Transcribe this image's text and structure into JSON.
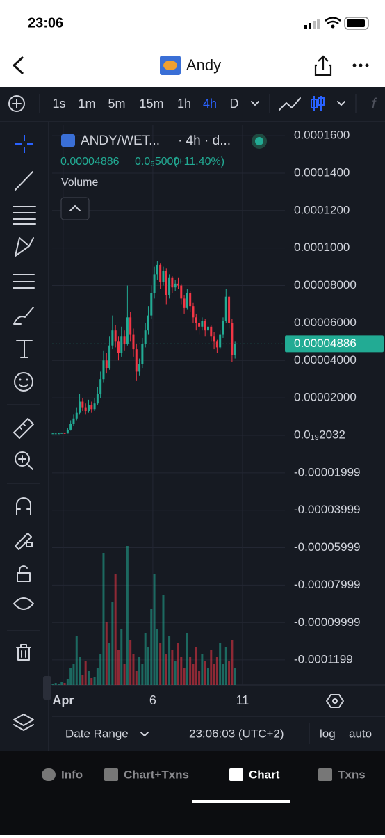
{
  "status_bar": {
    "time": "23:06"
  },
  "header": {
    "title": "Andy"
  },
  "timeframes": {
    "items": [
      "1s",
      "1m",
      "5m",
      "15m",
      "1h",
      "4h",
      "D"
    ],
    "active": "4h"
  },
  "chart_data": {
    "type": "candlestick",
    "title": "ANDY/WET...",
    "subtitle": "· 4h · d...",
    "volume_label": "Volume",
    "up_color": "#22ab94",
    "down_color": "#f23645",
    "last_price": 4.886e-05,
    "price_change": {
      "value": 5e-06,
      "label": "0.0₅5000"
    },
    "price_change_pct": {
      "value": 11.4,
      "label": "(+11.40%)"
    },
    "xlim": [
      -0.2,
      77.7
    ],
    "xticks": [
      {
        "value": 3.5,
        "label": "Apr"
      },
      {
        "value": 33.5,
        "label": "6"
      },
      {
        "value": 63.5,
        "label": "11"
      }
    ],
    "ylim": [
      -0.0001333,
      0.0001656
    ],
    "yticks": [
      {
        "value": 0.00016,
        "label": "0.0001600"
      },
      {
        "value": 0.00014,
        "label": "0.0001400"
      },
      {
        "value": 0.00012,
        "label": "0.0001200"
      },
      {
        "value": 0.0001,
        "label": "0.0001000"
      },
      {
        "value": 8e-05,
        "label": "0.00008000"
      },
      {
        "value": 6e-05,
        "label": "0.00006000"
      },
      {
        "value": 4e-05,
        "label": "0.00004000"
      },
      {
        "value": 2e-05,
        "label": "0.00002000"
      },
      {
        "value": 2.032e-20,
        "label": "0.0₁₉2032"
      },
      -1.999e-05,
      -3.999e-05,
      -5.999e-05,
      -7.999e-05,
      -9.999e-05,
      -0.0001199
    ],
    "grid": true,
    "ohlc": [
      [
        1e-06,
        1.2e-06,
        9e-07,
        1e-06
      ],
      [
        1e-06,
        1.3e-06,
        9e-07,
        1e-06
      ],
      [
        1e-06,
        1.4e-06,
        9e-07,
        1e-06
      ],
      [
        1e-06,
        1.5e-06,
        1e-06,
        1.2e-06
      ],
      [
        1.2e-06,
        1.4e-06,
        8e-07,
        1e-06
      ],
      [
        1e-06,
        4e-06,
        1e-06,
        3e-06
      ],
      [
        3e-06,
        8e-06,
        2.5e-06,
        6e-06
      ],
      [
        6e-06,
        1.1e-05,
        5e-06,
        9e-06
      ],
      [
        9e-06,
        1.5e-05,
        8e-06,
        1.2e-05
      ],
      [
        1.2e-05,
        2.2e-05,
        1.1e-05,
        1.8e-05
      ],
      [
        1.8e-05,
        2e-05,
        1.3e-05,
        1.5e-05
      ],
      [
        1.5e-05,
        1.7e-05,
        1.1e-05,
        1.3e-05
      ],
      [
        1.3e-05,
        1.9e-05,
        1.2e-05,
        1.6e-05
      ],
      [
        1.6e-05,
        1.8e-05,
        1.2e-05,
        1.4e-05
      ],
      [
        1.4e-05,
        2e-05,
        1.3e-05,
        1.7e-05
      ],
      [
        1.7e-05,
        2.6e-05,
        1.6e-05,
        2.2e-05
      ],
      [
        2.2e-05,
        3.4e-05,
        2e-05,
        3e-05
      ],
      [
        3e-05,
        4.5e-05,
        2.8e-05,
        4e-05
      ],
      [
        4e-05,
        4.4e-05,
        3.3e-05,
        3.6e-05
      ],
      [
        3.6e-05,
        5.3e-05,
        3.5e-05,
        4.8e-05
      ],
      [
        4.8e-05,
        6.4e-05,
        4.6e-05,
        5.6e-05
      ],
      [
        5.6e-05,
        5.9e-05,
        4.7e-05,
        5e-05
      ],
      [
        5e-05,
        5.3e-05,
        4e-05,
        4.4e-05
      ],
      [
        4.4e-05,
        5.8e-05,
        4.2e-05,
        5.3e-05
      ],
      [
        5.3e-05,
        5.6e-05,
        4.5e-05,
        4.9e-05
      ],
      [
        4.9e-05,
        8e-05,
        4.8e-05,
        6.3e-05
      ],
      [
        6.3e-05,
        6.6e-05,
        5e-05,
        5.4e-05
      ],
      [
        5.4e-05,
        5.7e-05,
        4.2e-05,
        4.6e-05
      ],
      [
        4.6e-05,
        4.9e-05,
        2.9e-05,
        3.4e-05
      ],
      [
        3.4e-05,
        4.1e-05,
        3.2e-05,
        3.8e-05
      ],
      [
        3.8e-05,
        5.2e-05,
        3.6e-05,
        4.9e-05
      ],
      [
        4.9e-05,
        6e-05,
        4.7e-05,
        5.6e-05
      ],
      [
        5.6e-05,
        6.9e-05,
        5.4e-05,
        6.4e-05
      ],
      [
        6.4e-05,
        8e-05,
        6.2e-05,
        7.6e-05
      ],
      [
        7.6e-05,
        9e-05,
        7.3e-05,
        8.6e-05
      ],
      [
        8.6e-05,
        9.3e-05,
        8.3e-05,
        9.1e-05
      ],
      [
        9.1e-05,
        9.2e-05,
        7.8e-05,
        8.2e-05
      ],
      [
        8.2e-05,
        9e-05,
        8e-05,
        8.8e-05
      ],
      [
        8.8e-05,
        8.9e-05,
        7e-05,
        7.5e-05
      ],
      [
        7.5e-05,
        8.6e-05,
        7.3e-05,
        8.4e-05
      ],
      [
        8.4e-05,
        8.5e-05,
        7.6e-05,
        7.9e-05
      ],
      [
        7.9e-05,
        8.3e-05,
        7.7e-05,
        8.1e-05
      ],
      [
        8.1e-05,
        8.4e-05,
        7.8e-05,
        8e-05
      ],
      [
        8e-05,
        8.1e-05,
        7e-05,
        7.3e-05
      ],
      [
        7.3e-05,
        7.5e-05,
        6.5e-05,
        6.8e-05
      ],
      [
        6.8e-05,
        7.8e-05,
        6.7e-05,
        7.6e-05
      ],
      [
        7.6e-05,
        7.7e-05,
        6.6e-05,
        6.9e-05
      ],
      [
        6.9e-05,
        7.1e-05,
        6e-05,
        6.3e-05
      ],
      [
        6.3e-05,
        6.5e-05,
        5.6e-05,
        6e-05
      ],
      [
        6e-05,
        6.2e-05,
        5.4e-05,
        5.8e-05
      ],
      [
        5.8e-05,
        6.3e-05,
        5.6e-05,
        6.1e-05
      ],
      [
        6.1e-05,
        6.2e-05,
        5.3e-05,
        5.6e-05
      ],
      [
        5.6e-05,
        6e-05,
        5.4e-05,
        5.8e-05
      ],
      [
        5.8e-05,
        5.9e-05,
        5e-05,
        5.3e-05
      ],
      [
        5.3e-05,
        5.5e-05,
        4.6e-05,
        5e-05
      ],
      [
        5e-05,
        5.1e-05,
        4.4e-05,
        4.7e-05
      ],
      [
        4.7e-05,
        5.6e-05,
        4.6e-05,
        5.4e-05
      ],
      [
        5.4e-05,
        6.3e-05,
        5.2e-05,
        6.1e-05
      ],
      [
        6.1e-05,
        7.8e-05,
        6e-05,
        7.4e-05
      ],
      [
        7.4e-05,
        7.5e-05,
        5.7e-05,
        6e-05
      ],
      [
        6e-05,
        6.2e-05,
        3.9e-05,
        4.3e-05
      ],
      [
        4.3e-05,
        5e-05,
        4.1e-05,
        4.886e-05
      ]
    ],
    "volumes": [
      2,
      3,
      2,
      4,
      3,
      8,
      25,
      30,
      70,
      40,
      15,
      35,
      20,
      10,
      12,
      25,
      45,
      190,
      90,
      60,
      120,
      160,
      50,
      80,
      30,
      200,
      65,
      45,
      20,
      40,
      30,
      75,
      55,
      110,
      160,
      80,
      60,
      130,
      45,
      70,
      50,
      35,
      60,
      40,
      25,
      75,
      40,
      30,
      55,
      20,
      45,
      35,
      25,
      50,
      30,
      40,
      60,
      30,
      55,
      35,
      65,
      25
    ]
  },
  "footer": {
    "date_range": "Date Range",
    "clock": "23:06:03 (UTC+2)",
    "scale_options": [
      "log",
      "auto"
    ]
  },
  "tabs": {
    "items": [
      "Info",
      "Chart+Txns",
      "Chart",
      "Txns"
    ],
    "active": "Chart"
  }
}
